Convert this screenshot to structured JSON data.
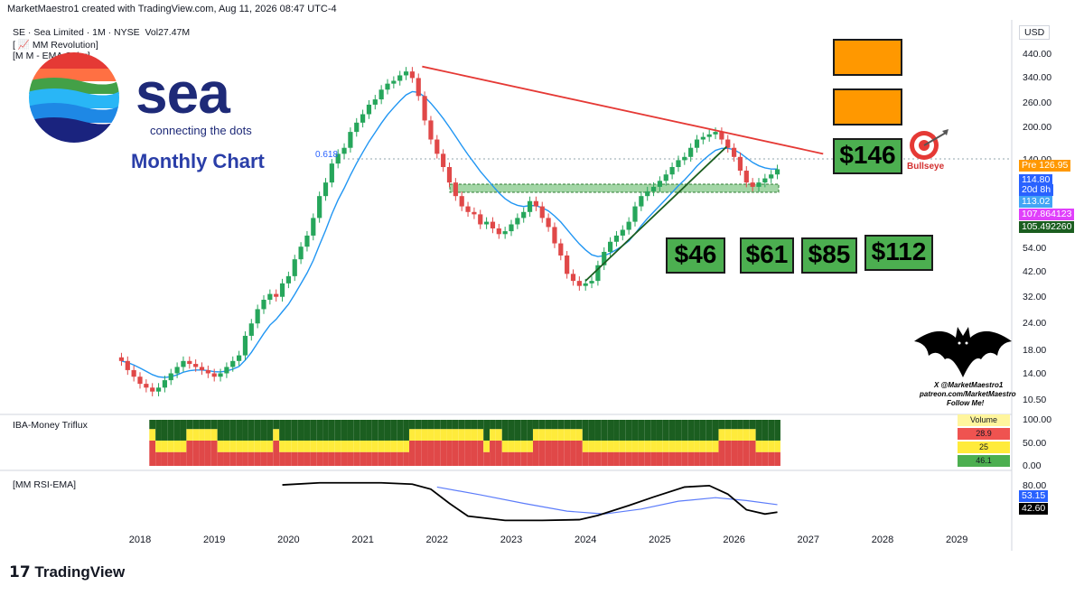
{
  "header": {
    "credit": "MarketMaestro1 created with TradingView.com, Aug 11, 2026 08:47 UTC-4",
    "symbol_line": "SE · Sea Limited · 1M · NYSE",
    "volume_label": "Vol",
    "volume_value": "27.47M",
    "indicator_1": "[ 📈 MM Revolution]",
    "indicator_2": "[M M - EMA Color]",
    "currency": "USD"
  },
  "branding": {
    "logo_text": "sea",
    "tagline": "connecting the dots",
    "subtitle": "Monthly Chart",
    "fib_label": "0.618",
    "tv_logo": "TradingView",
    "bullseye": "Bullseye",
    "bat_lines": [
      "X @MarketMaestro1",
      "patreon.com/MarketMaestro",
      "Follow Me!"
    ]
  },
  "price_targets": [
    "$146",
    "$46",
    "$61",
    "$85",
    "$112"
  ],
  "panes": {
    "volume_pane_label": "IBA-Money Triflux",
    "rsi_pane_label": "[MM RSI-EMA]",
    "volume_table": {
      "title": "Volume",
      "rows": [
        "28.9",
        "25",
        "46.1"
      ]
    }
  },
  "price_tags": [
    {
      "label": "Pre",
      "value": "126.95",
      "color": "#ff9800"
    },
    {
      "label": "",
      "value": "114.80",
      "color": "#2962ff"
    },
    {
      "label": "",
      "value": "20d 8h",
      "color": "#2962ff"
    },
    {
      "label": "",
      "value": "113.02",
      "color": "#42a5f5"
    },
    {
      "label": "",
      "value": "107.864123",
      "color": "#e040fb"
    },
    {
      "label": "",
      "value": "105.492260",
      "color": "#1b5e20"
    }
  ],
  "rsi_tags": [
    {
      "value": "53.15",
      "color": "#2962ff"
    },
    {
      "value": "42.60",
      "color": "#000000"
    }
  ],
  "colors": {
    "up": "#26a65b",
    "down": "#e04848",
    "ema_blue": "#2196f3",
    "trend_red": "#e53935",
    "trend_green": "#1b5e20",
    "zone": "#66bb6a",
    "target_box": "#4caf50",
    "placeholder_box": "#ff9800"
  },
  "chart_data": {
    "type": "candlestick",
    "scale": "log",
    "ylim": [
      10,
      500
    ],
    "y_ticks": [
      "440.00",
      "340.00",
      "260.00",
      "200.00",
      "140.00",
      "100.00",
      "75.00",
      "54.00",
      "42.00",
      "32.00",
      "24.00",
      "18.00",
      "14.00",
      "10.50"
    ],
    "y_tick_values": [
      440,
      340,
      260,
      200,
      140,
      100,
      75,
      54,
      42,
      32,
      24,
      18,
      14,
      10.5
    ],
    "x_ticks": [
      "2018",
      "2019",
      "2020",
      "2021",
      "2022",
      "2023",
      "2024",
      "2025",
      "2026",
      "2027",
      "2028",
      "2029"
    ],
    "x_tick_values": [
      2018,
      2019,
      2020,
      2021,
      2022,
      2023,
      2024,
      2025,
      2026,
      2027,
      2028,
      2029
    ],
    "x_range": [
      2017.7,
      2029.7
    ],
    "monthly_close": [
      16,
      14.5,
      13.5,
      12.5,
      12,
      11.5,
      12,
      13,
      14,
      15,
      16,
      15.5,
      15,
      14.5,
      14,
      13.5,
      14,
      15,
      16,
      17,
      21,
      24,
      28,
      31,
      33,
      32,
      37,
      40,
      48,
      55,
      62,
      75,
      95,
      110,
      135,
      150,
      160,
      190,
      210,
      230,
      255,
      270,
      300,
      320,
      330,
      350,
      365,
      340,
      280,
      215,
      175,
      150,
      130,
      110,
      95,
      85,
      80,
      78,
      70,
      72,
      67,
      63,
      65,
      70,
      75,
      80,
      90,
      85,
      75,
      68,
      57,
      50,
      41,
      38,
      36,
      37,
      38,
      45,
      52,
      58,
      62,
      66,
      72,
      85,
      95,
      100,
      105,
      112,
      120,
      130,
      140,
      145,
      160,
      175,
      180,
      185,
      190,
      175,
      160,
      145,
      125,
      110,
      105,
      110,
      115,
      120,
      126.95
    ],
    "start_month": "2017-10",
    "trendlines": [
      {
        "name": "descending resistance",
        "from": [
          2021.8,
          385
        ],
        "to": [
          2027.2,
          150
        ]
      },
      {
        "name": "rising support",
        "from": [
          2024.0,
          38
        ],
        "to": [
          2025.9,
          162
        ]
      }
    ],
    "support_zone": [
      99,
      108
    ],
    "fib_0618": 142,
    "last_price": 126.95,
    "volume_pane": {
      "ylim": [
        0,
        100
      ],
      "y_ticks": [
        "100.00",
        "50.00",
        "0.00"
      ],
      "y_tick_values": [
        100,
        50,
        0
      ]
    },
    "rsi_pane": {
      "ylim": [
        20,
        90
      ],
      "y_ticks": [
        "80.00"
      ],
      "y_tick_values": [
        80
      ],
      "rsi": [
        [
          "2019-12",
          81
        ],
        [
          "2020-06",
          84
        ],
        [
          "2021-04",
          84
        ],
        [
          "2021-09",
          82
        ],
        [
          "2021-12",
          75
        ],
        [
          "2022-03",
          55
        ],
        [
          "2022-06",
          37
        ],
        [
          "2022-12",
          31
        ],
        [
          "2023-06",
          31
        ],
        [
          "2023-12",
          32
        ],
        [
          "2024-03",
          38
        ],
        [
          "2024-08",
          52
        ],
        [
          "2024-12",
          64
        ],
        [
          "2025-05",
          78
        ],
        [
          "2025-09",
          80
        ],
        [
          "2025-12",
          68
        ],
        [
          "2026-03",
          46
        ],
        [
          "2026-06",
          40
        ],
        [
          "2026-08",
          42.6
        ]
      ],
      "ema": [
        [
          "2022-01",
          78
        ],
        [
          "2022-08",
          67
        ],
        [
          "2023-03",
          55
        ],
        [
          "2023-10",
          44
        ],
        [
          "2024-04",
          40
        ],
        [
          "2024-10",
          47
        ],
        [
          "2025-04",
          58
        ],
        [
          "2025-10",
          63
        ],
        [
          "2026-03",
          59
        ],
        [
          "2026-08",
          53.15
        ]
      ]
    }
  }
}
